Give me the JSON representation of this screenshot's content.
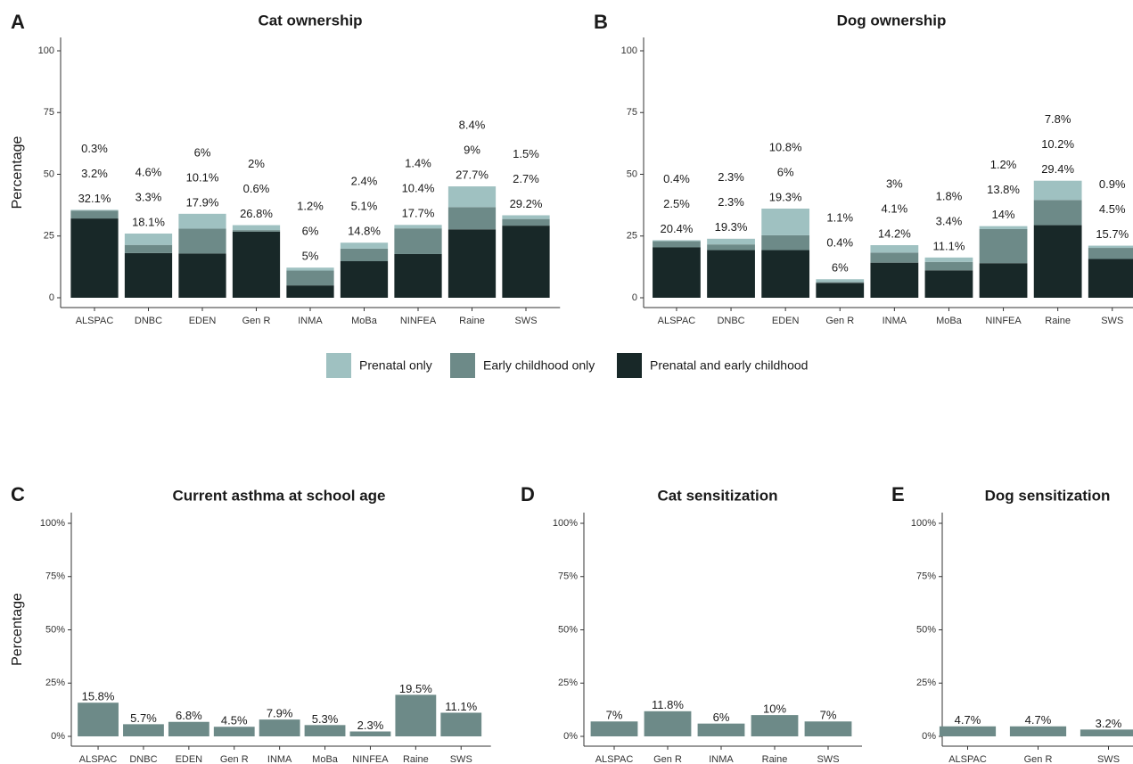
{
  "chart_data": [
    {
      "type": "bar",
      "panel": "A",
      "title": "Cat ownership",
      "ylabel": "Percentage",
      "stacked": true,
      "categories": [
        "ALSPAC",
        "DNBC",
        "EDEN",
        "Gen R",
        "INMA",
        "MoBa",
        "NINFEA",
        "Raine",
        "SWS"
      ],
      "series": [
        {
          "name": "Prenatal and early childhood",
          "color": "#182828",
          "values": [
            32.1,
            18.1,
            17.9,
            26.8,
            5,
            14.8,
            17.7,
            27.7,
            29.2
          ],
          "value_labels": [
            "32.1%",
            "18.1%",
            "17.9%",
            "26.8%",
            "5%",
            "14.8%",
            "17.7%",
            "27.7%",
            "29.2%"
          ]
        },
        {
          "name": "Early childhood only",
          "color": "#6d8a88",
          "values": [
            3.2,
            3.3,
            10.1,
            0.6,
            6,
            5.1,
            10.4,
            9,
            2.7
          ],
          "value_labels": [
            "3.2%",
            "3.3%",
            "10.1%",
            "0.6%",
            "6%",
            "5.1%",
            "10.4%",
            "9%",
            "2.7%"
          ]
        },
        {
          "name": "Prenatal only",
          "color": "#9fc1c1",
          "values": [
            0.3,
            4.6,
            6,
            2,
            1.2,
            2.4,
            1.4,
            8.4,
            1.5
          ],
          "value_labels": [
            "0.3%",
            "4.6%",
            "6%",
            "2%",
            "1.2%",
            "2.4%",
            "1.4%",
            "8.4%",
            "1.5%"
          ]
        }
      ],
      "ylim": [
        0,
        100
      ],
      "yticks": [
        0,
        25,
        50,
        75,
        100
      ]
    },
    {
      "type": "bar",
      "panel": "B",
      "title": "Dog ownership",
      "stacked": true,
      "categories": [
        "ALSPAC",
        "DNBC",
        "EDEN",
        "Gen R",
        "INMA",
        "MoBa",
        "NINFEA",
        "Raine",
        "SWS"
      ],
      "series": [
        {
          "color": "#182828",
          "values": [
            20.4,
            19.3,
            19.3,
            6,
            14.2,
            11.1,
            14,
            29.4,
            15.7
          ],
          "value_labels": [
            "20.4%",
            "19.3%",
            "19.3%",
            "6%",
            "14.2%",
            "11.1%",
            "14%",
            "29.4%",
            "15.7%"
          ]
        },
        {
          "color": "#6d8a88",
          "values": [
            2.5,
            2.3,
            6,
            0.4,
            4.1,
            3.4,
            13.8,
            10.2,
            4.5
          ],
          "value_labels": [
            "2.5%",
            "2.3%",
            "6%",
            "0.4%",
            "4.1%",
            "3.4%",
            "13.8%",
            "10.2%",
            "4.5%"
          ]
        },
        {
          "color": "#9fc1c1",
          "values": [
            0.4,
            2.3,
            10.8,
            1.1,
            3,
            1.8,
            1.2,
            7.8,
            0.9
          ],
          "value_labels": [
            "0.4%",
            "2.3%",
            "10.8%",
            "1.1%",
            "3%",
            "1.8%",
            "1.2%",
            "7.8%",
            "0.9%"
          ]
        }
      ],
      "ylim": [
        0,
        100
      ],
      "yticks": [
        0,
        25,
        50,
        75,
        100
      ]
    },
    {
      "type": "bar",
      "panel": "C",
      "title": "Current asthma at school age",
      "ylabel": "Percentage",
      "color": "#6d8a88",
      "categories": [
        "ALSPAC",
        "DNBC",
        "EDEN",
        "Gen R",
        "INMA",
        "MoBa",
        "NINFEA",
        "Raine",
        "SWS"
      ],
      "values": [
        15.8,
        5.7,
        6.8,
        4.5,
        7.9,
        5.3,
        2.3,
        19.5,
        11.1
      ],
      "value_labels": [
        "15.8%",
        "5.7%",
        "6.8%",
        "4.5%",
        "7.9%",
        "5.3%",
        "2.3%",
        "19.5%",
        "11.1%"
      ],
      "ylim": [
        0,
        100
      ],
      "yticks": [
        {
          "value": 0,
          "label": "0%"
        },
        {
          "value": 25,
          "label": "25%"
        },
        {
          "value": 50,
          "label": "50%"
        },
        {
          "value": 75,
          "label": "75%"
        },
        {
          "value": 100,
          "label": "100%"
        }
      ]
    },
    {
      "type": "bar",
      "panel": "D",
      "title": "Cat sensitization",
      "color": "#6d8a88",
      "categories": [
        "ALSPAC",
        "Gen R",
        "INMA",
        "Raine",
        "SWS"
      ],
      "values": [
        7,
        11.8,
        6,
        10,
        7
      ],
      "value_labels": [
        "7%",
        "11.8%",
        "6%",
        "10%",
        "7%"
      ],
      "ylim": [
        0,
        100
      ],
      "yticks": [
        {
          "value": 0,
          "label": "0%"
        },
        {
          "value": 25,
          "label": "25%"
        },
        {
          "value": 50,
          "label": "50%"
        },
        {
          "value": 75,
          "label": "75%"
        },
        {
          "value": 100,
          "label": "100%"
        }
      ]
    },
    {
      "type": "bar",
      "panel": "E",
      "title": "Dog sensitization",
      "color": "#6d8a88",
      "categories": [
        "ALSPAC",
        "Gen R",
        "SWS"
      ],
      "values": [
        4.7,
        4.7,
        3.2
      ],
      "value_labels": [
        "4.7%",
        "4.7%",
        "3.2%"
      ],
      "ylim": [
        0,
        100
      ],
      "yticks": [
        {
          "value": 0,
          "label": "0%"
        },
        {
          "value": 25,
          "label": "25%"
        },
        {
          "value": 50,
          "label": "50%"
        },
        {
          "value": 75,
          "label": "75%"
        },
        {
          "value": 100,
          "label": "100%"
        }
      ]
    }
  ]
}
